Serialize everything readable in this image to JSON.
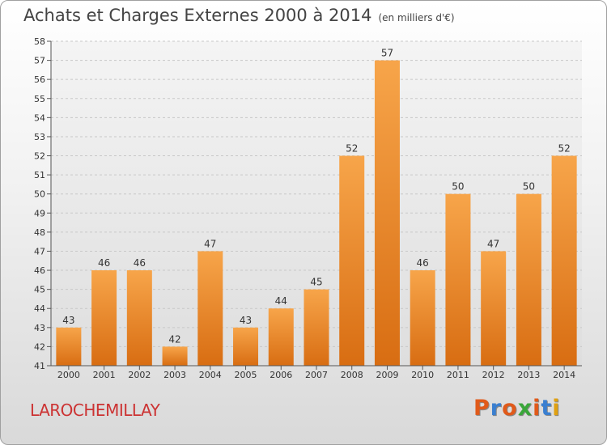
{
  "chart_data": {
    "type": "bar",
    "title": "Achats et Charges Externes 2000 à 2014",
    "subtitle": "(en milliers d'€)",
    "categories": [
      "2000",
      "2001",
      "2002",
      "2003",
      "2004",
      "2005",
      "2006",
      "2007",
      "2008",
      "2009",
      "2010",
      "2011",
      "2012",
      "2013",
      "2014"
    ],
    "values": [
      43,
      46,
      46,
      42,
      47,
      43,
      44,
      45,
      52,
      57,
      46,
      50,
      47,
      50,
      52
    ],
    "ylim": [
      41,
      58
    ],
    "yticks": [
      41,
      42,
      43,
      44,
      45,
      46,
      47,
      48,
      49,
      50,
      51,
      52,
      53,
      54,
      55,
      56,
      57,
      58
    ],
    "grid": true,
    "xlabel": "",
    "ylabel": "",
    "bar_color_top": "#f7a54a",
    "bar_color_bottom": "#d86d12"
  },
  "footer": {
    "location": "LAROCHEMILLAY",
    "logo_text": "Proxiti",
    "logo_colors": [
      "#e05a1a",
      "#3a7fd0",
      "#e05a1a",
      "#3aa63a",
      "#e05a1a",
      "#3a7fd0",
      "#e0a010"
    ]
  }
}
